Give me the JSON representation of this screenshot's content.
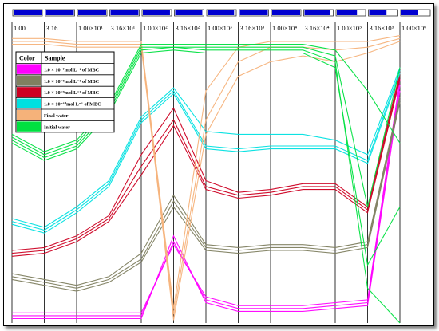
{
  "chart_data": {
    "type": "line",
    "subtype": "parallel-coordinates",
    "categories": [
      "1.00",
      "3.16",
      "1.00×10¹",
      "3.16×10¹",
      "1.00×10²",
      "3.16×10²",
      "1.00×10³",
      "3.16×10³",
      "1.00×10⁴",
      "3.16×10⁴",
      "1.00×10⁵",
      "3.16×10⁵",
      "1.00×10⁶"
    ],
    "slider_fill": [
      1.0,
      1.0,
      1.0,
      1.0,
      0.97,
      0.97,
      0.95,
      1.0,
      1.0,
      0.9,
      0.72,
      0.62,
      0.6
    ],
    "ylim": [
      0,
      100
    ],
    "grid": false,
    "legend": {
      "position": "top-left",
      "header": [
        "Color",
        "Sample"
      ],
      "entries": [
        {
          "label": "1.0 × 10⁻⁷mol L⁻¹ of MBC",
          "color": "#ff00ff"
        },
        {
          "label": "1.0 × 10⁻⁸mol L⁻¹ of MBC",
          "color": "#808060"
        },
        {
          "label": "1.0 × 10⁻⁹mol L⁻¹ of MBC",
          "color": "#cc0022"
        },
        {
          "label": "1.0 × 10⁻¹⁰mol L⁻¹ of MBC",
          "color": "#00e0e0"
        },
        {
          "label": "Final water",
          "color": "#f5b27a"
        },
        {
          "label": "Initial water",
          "color": "#00e040"
        }
      ]
    },
    "series": [
      {
        "name": "1.0 × 10⁻⁷mol L⁻¹ of MBC",
        "color": "#ff00ff",
        "lines": [
          [
            1.5,
            1.5,
            1.5,
            1.5,
            1.5,
            30,
            7,
            4,
            4,
            4,
            5,
            6,
            80
          ],
          [
            2.5,
            2.5,
            2.5,
            2.5,
            2.5,
            28,
            8,
            5,
            5,
            5,
            6,
            7,
            82
          ],
          [
            3.5,
            3.5,
            3.5,
            3.5,
            3.5,
            27,
            9,
            6,
            6,
            6,
            7,
            8,
            84
          ]
        ]
      },
      {
        "name": "1.0 × 10⁻⁸mol L⁻¹ of MBC",
        "color": "#808060",
        "lines": [
          [
            17,
            15,
            13,
            16,
            24,
            44,
            27,
            26,
            27,
            27,
            26,
            28,
            78
          ],
          [
            16,
            14,
            12,
            15,
            22,
            42,
            26,
            25,
            26,
            26,
            25,
            27,
            77
          ],
          [
            15,
            13,
            11,
            14,
            21,
            40,
            25,
            24,
            25,
            25,
            24,
            26,
            76
          ]
        ]
      },
      {
        "name": "1.0 × 10⁻⁹mol L⁻¹ of MBC",
        "color": "#cc0022",
        "lines": [
          [
            25,
            26,
            30,
            37,
            58,
            74,
            49,
            45,
            46,
            48,
            48,
            40,
            86
          ],
          [
            24,
            25,
            29,
            36,
            54,
            70,
            47,
            44,
            45,
            47,
            47,
            39,
            85
          ],
          [
            23,
            24,
            28,
            35,
            51,
            68,
            46,
            43,
            44,
            46,
            46,
            38,
            84
          ]
        ]
      },
      {
        "name": "1.0 × 10⁻¹⁰mol L⁻¹ of MBC",
        "color": "#00e0e0",
        "lines": [
          [
            36,
            33,
            40,
            49,
            71,
            81,
            66,
            65,
            65,
            65,
            63,
            58,
            88
          ],
          [
            35,
            32,
            39,
            48,
            70,
            80,
            61,
            60,
            61,
            61,
            61,
            56,
            87
          ],
          [
            34,
            31,
            38,
            47,
            69,
            79,
            60,
            59,
            60,
            60,
            60,
            55,
            86
          ]
        ]
      },
      {
        "name": "Final water",
        "color": "#f5b27a",
        "lines": [
          [
            98,
            98,
            97,
            97,
            97,
            5,
            80,
            95,
            97,
            97,
            97,
            97,
            99
          ],
          [
            97,
            97,
            96,
            96,
            96,
            3,
            70,
            90,
            95,
            95,
            94,
            95,
            98
          ],
          [
            96,
            96,
            95,
            95,
            95,
            1,
            65,
            85,
            90,
            92,
            90,
            93,
            97
          ]
        ]
      },
      {
        "name": "Initial water",
        "color": "#00e040",
        "lines": [
          [
            65,
            59,
            63,
            75,
            96,
            96,
            96,
            96,
            96,
            96,
            94,
            80,
            62
          ],
          [
            64,
            58,
            62,
            74,
            95,
            95,
            95,
            95,
            95,
            95,
            92,
            40,
            88
          ],
          [
            63,
            57,
            61,
            73,
            94,
            95,
            94,
            94,
            94,
            94,
            90,
            12,
            0
          ],
          [
            62,
            56,
            60,
            72,
            93,
            94,
            93,
            93,
            93,
            93,
            88,
            20,
            40
          ]
        ]
      }
    ]
  }
}
